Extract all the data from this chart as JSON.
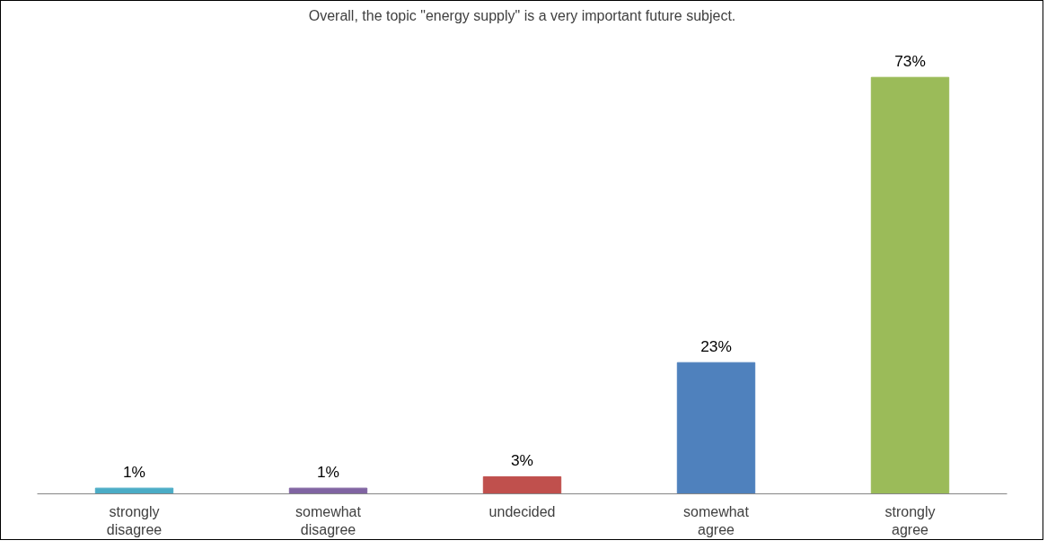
{
  "chart_data": {
    "type": "bar",
    "title": "Overall, the topic \"energy supply\" is a very important future subject.",
    "categories": [
      "strongly disagree",
      "somewhat disagree",
      "undecided",
      "somewhat agree",
      "strongly agree"
    ],
    "values": [
      1,
      1,
      3,
      23,
      73
    ],
    "colors": [
      "#4bacc6",
      "#8064a2",
      "#c0504d",
      "#4f81bd",
      "#9bbb59"
    ],
    "value_labels": [
      "1%",
      "1%",
      "3%",
      "23%",
      "73%"
    ],
    "grid": false
  }
}
